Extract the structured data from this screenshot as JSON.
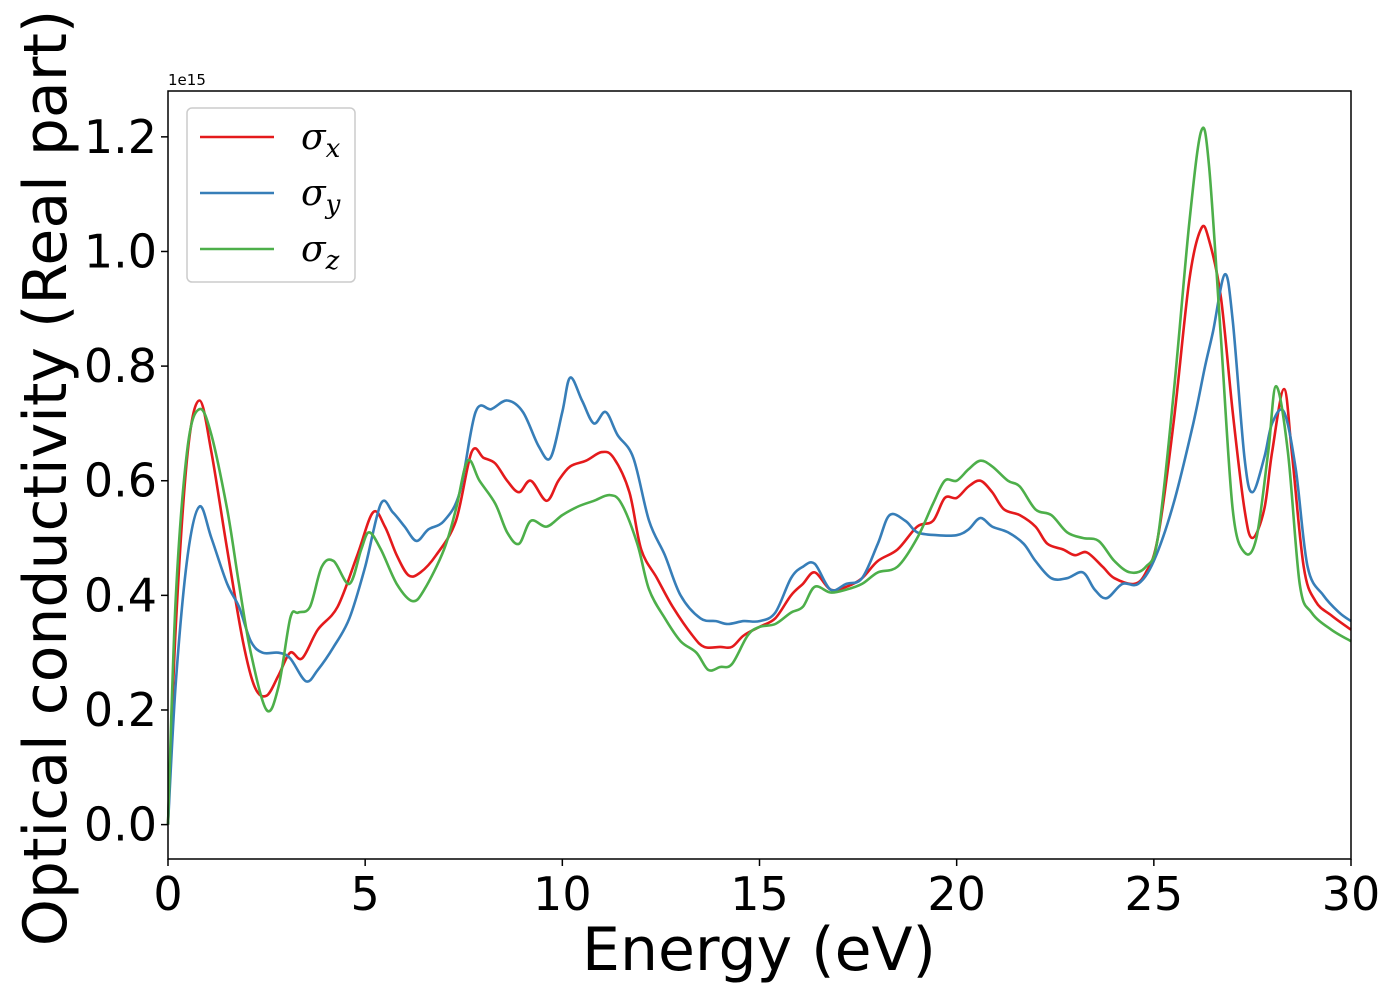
{
  "chart_data": {
    "type": "line",
    "xlabel": "Energy (eV)",
    "ylabel": "Optical conductivity (Real part)",
    "y_offset_label": "1e15",
    "xlim": [
      0,
      30
    ],
    "ylim": [
      -0.06,
      1.28
    ],
    "xticks": [
      0,
      5,
      10,
      15,
      20,
      25,
      30
    ],
    "xtick_labels": [
      "0",
      "5",
      "10",
      "15",
      "20",
      "25",
      "30"
    ],
    "yticks": [
      0.0,
      0.2,
      0.4,
      0.6,
      0.8,
      1.0,
      1.2
    ],
    "ytick_labels": [
      "0.0",
      "0.2",
      "0.4",
      "0.6",
      "0.8",
      "1.0",
      "1.2"
    ],
    "grid": false,
    "legend_position": "top-left",
    "series": [
      {
        "name": "σx",
        "base": "σ",
        "sub": "x",
        "color": "#e41a1c",
        "points": [
          [
            0,
            0.0
          ],
          [
            0.2,
            0.35
          ],
          [
            0.5,
            0.65
          ],
          [
            0.8,
            0.74
          ],
          [
            1.1,
            0.65
          ],
          [
            1.5,
            0.48
          ],
          [
            1.9,
            0.32
          ],
          [
            2.2,
            0.24
          ],
          [
            2.5,
            0.225
          ],
          [
            2.8,
            0.26
          ],
          [
            3.1,
            0.3
          ],
          [
            3.4,
            0.29
          ],
          [
            3.8,
            0.34
          ],
          [
            4.3,
            0.38
          ],
          [
            4.8,
            0.47
          ],
          [
            5.2,
            0.545
          ],
          [
            5.5,
            0.52
          ],
          [
            5.8,
            0.47
          ],
          [
            6.1,
            0.435
          ],
          [
            6.4,
            0.44
          ],
          [
            6.8,
            0.47
          ],
          [
            7.3,
            0.53
          ],
          [
            7.7,
            0.65
          ],
          [
            8.0,
            0.64
          ],
          [
            8.3,
            0.63
          ],
          [
            8.6,
            0.6
          ],
          [
            8.9,
            0.58
          ],
          [
            9.2,
            0.6
          ],
          [
            9.6,
            0.565
          ],
          [
            9.9,
            0.6
          ],
          [
            10.2,
            0.625
          ],
          [
            10.6,
            0.635
          ],
          [
            11.0,
            0.65
          ],
          [
            11.3,
            0.64
          ],
          [
            11.7,
            0.58
          ],
          [
            12.0,
            0.48
          ],
          [
            12.4,
            0.43
          ],
          [
            12.8,
            0.38
          ],
          [
            13.3,
            0.33
          ],
          [
            13.6,
            0.31
          ],
          [
            14.0,
            0.31
          ],
          [
            14.3,
            0.31
          ],
          [
            14.6,
            0.33
          ],
          [
            15.0,
            0.345
          ],
          [
            15.4,
            0.36
          ],
          [
            15.8,
            0.4
          ],
          [
            16.1,
            0.42
          ],
          [
            16.4,
            0.44
          ],
          [
            16.8,
            0.41
          ],
          [
            17.2,
            0.415
          ],
          [
            17.6,
            0.43
          ],
          [
            18.0,
            0.46
          ],
          [
            18.5,
            0.48
          ],
          [
            19.0,
            0.52
          ],
          [
            19.4,
            0.53
          ],
          [
            19.7,
            0.57
          ],
          [
            20.0,
            0.57
          ],
          [
            20.3,
            0.59
          ],
          [
            20.6,
            0.6
          ],
          [
            20.9,
            0.58
          ],
          [
            21.2,
            0.55
          ],
          [
            21.6,
            0.54
          ],
          [
            22.0,
            0.52
          ],
          [
            22.3,
            0.49
          ],
          [
            22.7,
            0.48
          ],
          [
            23.0,
            0.47
          ],
          [
            23.3,
            0.475
          ],
          [
            23.7,
            0.45
          ],
          [
            24.0,
            0.43
          ],
          [
            24.5,
            0.42
          ],
          [
            24.8,
            0.44
          ],
          [
            25.1,
            0.5
          ],
          [
            25.5,
            0.7
          ],
          [
            25.9,
            0.95
          ],
          [
            26.2,
            1.04
          ],
          [
            26.4,
            1.02
          ],
          [
            26.7,
            0.92
          ],
          [
            27.0,
            0.72
          ],
          [
            27.3,
            0.55
          ],
          [
            27.5,
            0.5
          ],
          [
            27.8,
            0.55
          ],
          [
            28.0,
            0.65
          ],
          [
            28.3,
            0.76
          ],
          [
            28.5,
            0.65
          ],
          [
            28.8,
            0.45
          ],
          [
            29.1,
            0.39
          ],
          [
            29.5,
            0.365
          ],
          [
            30.0,
            0.34
          ]
        ]
      },
      {
        "name": "σy",
        "base": "σ",
        "sub": "y",
        "color": "#377eb8",
        "points": [
          [
            0,
            0.0
          ],
          [
            0.2,
            0.25
          ],
          [
            0.5,
            0.47
          ],
          [
            0.8,
            0.555
          ],
          [
            1.1,
            0.5
          ],
          [
            1.5,
            0.42
          ],
          [
            1.8,
            0.38
          ],
          [
            2.1,
            0.32
          ],
          [
            2.4,
            0.3
          ],
          [
            2.8,
            0.3
          ],
          [
            3.1,
            0.29
          ],
          [
            3.5,
            0.25
          ],
          [
            3.8,
            0.27
          ],
          [
            4.2,
            0.31
          ],
          [
            4.6,
            0.36
          ],
          [
            5.0,
            0.45
          ],
          [
            5.4,
            0.56
          ],
          [
            5.7,
            0.545
          ],
          [
            6.0,
            0.52
          ],
          [
            6.3,
            0.495
          ],
          [
            6.6,
            0.515
          ],
          [
            7.0,
            0.53
          ],
          [
            7.4,
            0.58
          ],
          [
            7.8,
            0.72
          ],
          [
            8.2,
            0.725
          ],
          [
            8.6,
            0.74
          ],
          [
            9.0,
            0.72
          ],
          [
            9.4,
            0.66
          ],
          [
            9.7,
            0.64
          ],
          [
            10.0,
            0.72
          ],
          [
            10.2,
            0.78
          ],
          [
            10.5,
            0.74
          ],
          [
            10.8,
            0.7
          ],
          [
            11.1,
            0.72
          ],
          [
            11.4,
            0.68
          ],
          [
            11.8,
            0.64
          ],
          [
            12.2,
            0.53
          ],
          [
            12.6,
            0.47
          ],
          [
            13.0,
            0.4
          ],
          [
            13.5,
            0.36
          ],
          [
            13.9,
            0.355
          ],
          [
            14.2,
            0.35
          ],
          [
            14.6,
            0.355
          ],
          [
            15.0,
            0.355
          ],
          [
            15.4,
            0.37
          ],
          [
            15.8,
            0.43
          ],
          [
            16.1,
            0.45
          ],
          [
            16.4,
            0.455
          ],
          [
            16.8,
            0.41
          ],
          [
            17.2,
            0.42
          ],
          [
            17.6,
            0.43
          ],
          [
            18.0,
            0.49
          ],
          [
            18.3,
            0.54
          ],
          [
            18.7,
            0.53
          ],
          [
            19.0,
            0.51
          ],
          [
            19.5,
            0.505
          ],
          [
            20.0,
            0.505
          ],
          [
            20.3,
            0.515
          ],
          [
            20.6,
            0.535
          ],
          [
            20.9,
            0.52
          ],
          [
            21.3,
            0.51
          ],
          [
            21.7,
            0.49
          ],
          [
            22.0,
            0.46
          ],
          [
            22.4,
            0.43
          ],
          [
            22.8,
            0.43
          ],
          [
            23.2,
            0.44
          ],
          [
            23.5,
            0.41
          ],
          [
            23.8,
            0.395
          ],
          [
            24.2,
            0.42
          ],
          [
            24.6,
            0.42
          ],
          [
            25.0,
            0.46
          ],
          [
            25.5,
            0.56
          ],
          [
            26.0,
            0.7
          ],
          [
            26.3,
            0.8
          ],
          [
            26.5,
            0.86
          ],
          [
            26.8,
            0.96
          ],
          [
            27.0,
            0.88
          ],
          [
            27.3,
            0.64
          ],
          [
            27.5,
            0.58
          ],
          [
            27.8,
            0.64
          ],
          [
            28.0,
            0.7
          ],
          [
            28.3,
            0.72
          ],
          [
            28.6,
            0.62
          ],
          [
            28.9,
            0.45
          ],
          [
            29.3,
            0.4
          ],
          [
            29.7,
            0.37
          ],
          [
            30.0,
            0.355
          ]
        ]
      },
      {
        "name": "σz",
        "base": "σ",
        "sub": "z",
        "color": "#4daf4a",
        "points": [
          [
            0,
            0.0
          ],
          [
            0.2,
            0.4
          ],
          [
            0.5,
            0.66
          ],
          [
            0.8,
            0.725
          ],
          [
            1.1,
            0.68
          ],
          [
            1.5,
            0.55
          ],
          [
            1.8,
            0.42
          ],
          [
            2.1,
            0.3
          ],
          [
            2.5,
            0.2
          ],
          [
            2.8,
            0.24
          ],
          [
            3.1,
            0.36
          ],
          [
            3.3,
            0.37
          ],
          [
            3.6,
            0.38
          ],
          [
            3.9,
            0.45
          ],
          [
            4.2,
            0.46
          ],
          [
            4.6,
            0.42
          ],
          [
            4.9,
            0.48
          ],
          [
            5.1,
            0.51
          ],
          [
            5.4,
            0.48
          ],
          [
            5.8,
            0.42
          ],
          [
            6.2,
            0.39
          ],
          [
            6.5,
            0.41
          ],
          [
            7.0,
            0.48
          ],
          [
            7.3,
            0.55
          ],
          [
            7.6,
            0.635
          ],
          [
            7.9,
            0.6
          ],
          [
            8.3,
            0.56
          ],
          [
            8.6,
            0.51
          ],
          [
            8.9,
            0.49
          ],
          [
            9.2,
            0.53
          ],
          [
            9.6,
            0.52
          ],
          [
            10.0,
            0.54
          ],
          [
            10.4,
            0.555
          ],
          [
            10.8,
            0.565
          ],
          [
            11.2,
            0.575
          ],
          [
            11.5,
            0.56
          ],
          [
            11.9,
            0.49
          ],
          [
            12.2,
            0.41
          ],
          [
            12.6,
            0.36
          ],
          [
            13.0,
            0.32
          ],
          [
            13.4,
            0.3
          ],
          [
            13.7,
            0.27
          ],
          [
            14.0,
            0.275
          ],
          [
            14.3,
            0.28
          ],
          [
            14.7,
            0.33
          ],
          [
            15.0,
            0.345
          ],
          [
            15.4,
            0.35
          ],
          [
            15.8,
            0.37
          ],
          [
            16.1,
            0.38
          ],
          [
            16.4,
            0.415
          ],
          [
            16.8,
            0.405
          ],
          [
            17.2,
            0.41
          ],
          [
            17.6,
            0.42
          ],
          [
            18.0,
            0.44
          ],
          [
            18.5,
            0.45
          ],
          [
            19.0,
            0.5
          ],
          [
            19.4,
            0.56
          ],
          [
            19.7,
            0.6
          ],
          [
            20.0,
            0.6
          ],
          [
            20.3,
            0.62
          ],
          [
            20.6,
            0.635
          ],
          [
            20.9,
            0.625
          ],
          [
            21.3,
            0.6
          ],
          [
            21.6,
            0.59
          ],
          [
            22.0,
            0.55
          ],
          [
            22.4,
            0.54
          ],
          [
            22.8,
            0.51
          ],
          [
            23.2,
            0.5
          ],
          [
            23.6,
            0.495
          ],
          [
            24.0,
            0.46
          ],
          [
            24.4,
            0.44
          ],
          [
            24.8,
            0.45
          ],
          [
            25.1,
            0.5
          ],
          [
            25.5,
            0.75
          ],
          [
            25.9,
            1.05
          ],
          [
            26.2,
            1.21
          ],
          [
            26.4,
            1.15
          ],
          [
            26.7,
            0.85
          ],
          [
            27.0,
            0.55
          ],
          [
            27.3,
            0.475
          ],
          [
            27.6,
            0.5
          ],
          [
            27.9,
            0.65
          ],
          [
            28.1,
            0.765
          ],
          [
            28.4,
            0.65
          ],
          [
            28.7,
            0.42
          ],
          [
            29.0,
            0.37
          ],
          [
            29.5,
            0.34
          ],
          [
            30.0,
            0.32
          ]
        ]
      }
    ]
  }
}
